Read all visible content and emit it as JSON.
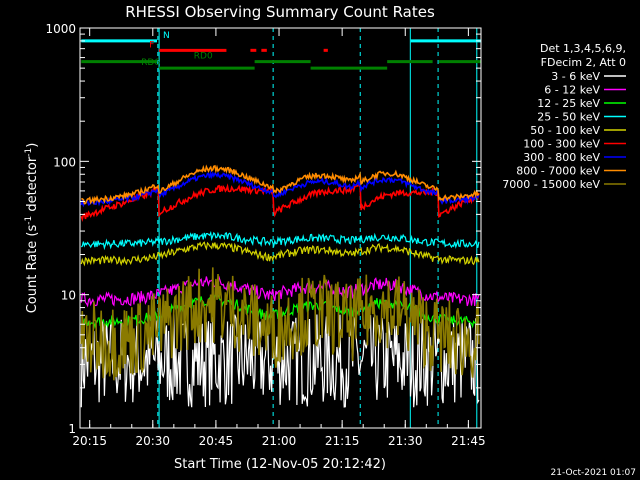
{
  "chart_data": {
    "type": "line",
    "title": "RHESSI Observing Summary Count Rates",
    "xlabel": "Start Time (12-Nov-05 20:12:42)",
    "ylabel": "Count Rate (s⁻¹ detector⁻¹)",
    "ylabel_main": "Count Rate (s",
    "ylabel_mid": " detector",
    "ylabel_end": ")",
    "ylabel_sup": "-1",
    "y_scale": "log",
    "xlim_minutes": [
      12.7,
      108
    ],
    "ylim": [
      1,
      1000
    ],
    "x_ticks": [
      {
        "m": 15,
        "label": "20:15"
      },
      {
        "m": 30,
        "label": "20:30"
      },
      {
        "m": 45,
        "label": "20:45"
      },
      {
        "m": 60,
        "label": "21:00"
      },
      {
        "m": 75,
        "label": "21:15"
      },
      {
        "m": 90,
        "label": "21:30"
      },
      {
        "m": 105,
        "label": "21:45"
      }
    ],
    "y_ticks": [
      {
        "v": 1,
        "label": "1"
      },
      {
        "v": 10,
        "label": "10"
      },
      {
        "v": 100,
        "label": "100"
      },
      {
        "v": 1000,
        "label": "1000"
      }
    ],
    "legend_header": [
      "Det 1,3,4,5,6,9,",
      "FDecim 2, Att 0"
    ],
    "legend_position": "right",
    "series": [
      {
        "name": "3 - 6 keV",
        "color": "#ffffff",
        "base": 3.2,
        "hump": 0,
        "jump": 0.0,
        "noise": 0.35
      },
      {
        "name": "6 - 12 keV",
        "color": "#ff00ff",
        "base": 9.2,
        "hump": 0.35,
        "jump": 0.0,
        "noise": 0.05
      },
      {
        "name": "12 - 25 keV",
        "color": "#00ff00",
        "base": 6.3,
        "hump": 0.45,
        "jump": 0.0,
        "noise": 0.04
      },
      {
        "name": "25 - 50 keV",
        "color": "#00ffff",
        "base": 24,
        "hump": 0.15,
        "jump": 0.0,
        "noise": 0.03
      },
      {
        "name": "50 - 100 keV",
        "color": "#d2d200",
        "base": 18,
        "hump": 0.3,
        "jump": 0.0,
        "noise": 0.03
      },
      {
        "name": "100 - 300 keV",
        "color": "#ff0000",
        "base": 38,
        "hump": 0.3,
        "jump": 0.5,
        "noise": 0.025
      },
      {
        "name": "300 - 800 keV",
        "color": "#0000ff",
        "base": 48,
        "hump": 0.55,
        "jump": 0.12,
        "noise": 0.02
      },
      {
        "name": "800 - 7000 keV",
        "color": "#ff8c00",
        "base": 50,
        "hump": 0.65,
        "jump": 0.15,
        "noise": 0.02
      },
      {
        "name": "7000 - 15000 keV",
        "color": "#8a7a00",
        "base": 4.5,
        "hump": 0.9,
        "jump": 0.0,
        "noise": 0.3
      }
    ],
    "night_boundaries": [
      31.5,
      91.2,
      107
    ],
    "saa_boundaries": [
      31.2,
      58.6,
      79.3,
      97.8
    ],
    "flags": {
      "N": {
        "label": "N",
        "color": "#00ffff",
        "value": 800,
        "segments": [
          [
            13,
            31
          ],
          [
            91.3,
            108
          ]
        ]
      },
      "F": {
        "label": "F",
        "color": "#ff0000",
        "value": 680,
        "segments": [
          [
            31.5,
            47.5
          ],
          [
            53.2,
            54.6
          ],
          [
            55.8,
            57.1
          ],
          [
            70.6,
            71.6
          ]
        ]
      },
      "RD0": {
        "label": "RD0",
        "color": "#008000",
        "value": 560,
        "segments": [
          [
            13,
            31
          ],
          [
            54.2,
            67.5
          ],
          [
            85.7,
            96.5
          ],
          [
            98,
            108
          ]
        ]
      },
      "RD6": {
        "label": "RD6",
        "color": "#008000",
        "value": 500,
        "segments": [
          [
            31.5,
            54.2
          ],
          [
            67.5,
            85.7
          ]
        ]
      }
    }
  },
  "footer_date": "21-Oct-2021 01:07"
}
